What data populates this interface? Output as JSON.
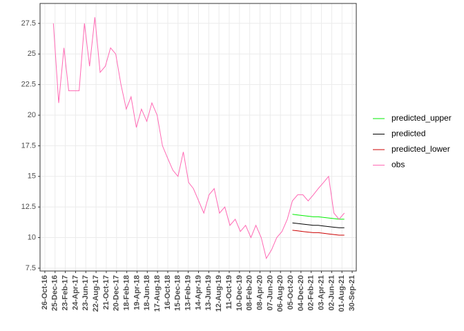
{
  "chart_data": {
    "type": "line",
    "x": [
      "2016-12-15",
      "2017-01-15",
      "2017-02-15",
      "2017-03-15",
      "2017-04-15",
      "2017-05-15",
      "2017-06-15",
      "2017-07-15",
      "2017-08-15",
      "2017-09-15",
      "2017-10-15",
      "2017-11-15",
      "2017-12-15",
      "2018-01-15",
      "2018-02-15",
      "2018-03-15",
      "2018-04-15",
      "2018-05-15",
      "2018-06-15",
      "2018-07-15",
      "2018-08-15",
      "2018-09-15",
      "2018-10-15",
      "2018-11-15",
      "2018-12-15",
      "2019-01-15",
      "2019-02-15",
      "2019-03-15",
      "2019-04-15",
      "2019-05-15",
      "2019-06-15",
      "2019-07-15",
      "2019-08-15",
      "2019-09-15",
      "2019-10-15",
      "2019-11-15",
      "2019-12-15",
      "2020-01-15",
      "2020-02-15",
      "2020-03-15",
      "2020-04-15",
      "2020-05-15",
      "2020-06-15",
      "2020-07-15",
      "2020-08-15",
      "2020-09-15",
      "2020-10-15",
      "2020-11-15",
      "2020-12-15",
      "2021-01-15",
      "2021-02-15",
      "2021-03-15",
      "2021-04-15",
      "2021-05-15",
      "2021-06-15",
      "2021-07-15",
      "2021-08-15"
    ],
    "series": [
      {
        "name": "predicted_upper",
        "color": "#00ee00",
        "values": [
          null,
          null,
          null,
          null,
          null,
          null,
          null,
          null,
          null,
          null,
          null,
          null,
          null,
          null,
          null,
          null,
          null,
          null,
          null,
          null,
          null,
          null,
          null,
          null,
          null,
          null,
          null,
          null,
          null,
          null,
          null,
          null,
          null,
          null,
          null,
          null,
          null,
          null,
          null,
          null,
          null,
          null,
          null,
          null,
          null,
          null,
          11.9,
          11.85,
          11.8,
          11.75,
          11.7,
          11.7,
          11.65,
          11.6,
          11.55,
          11.5,
          11.5
        ]
      },
      {
        "name": "predicted",
        "color": "#000000",
        "values": [
          null,
          null,
          null,
          null,
          null,
          null,
          null,
          null,
          null,
          null,
          null,
          null,
          null,
          null,
          null,
          null,
          null,
          null,
          null,
          null,
          null,
          null,
          null,
          null,
          null,
          null,
          null,
          null,
          null,
          null,
          null,
          null,
          null,
          null,
          null,
          null,
          null,
          null,
          null,
          null,
          null,
          null,
          null,
          null,
          null,
          null,
          11.2,
          11.15,
          11.1,
          11.05,
          11.0,
          11.0,
          10.95,
          10.9,
          10.85,
          10.8,
          10.8
        ]
      },
      {
        "name": "predicted_lower",
        "color": "#cc0000",
        "values": [
          null,
          null,
          null,
          null,
          null,
          null,
          null,
          null,
          null,
          null,
          null,
          null,
          null,
          null,
          null,
          null,
          null,
          null,
          null,
          null,
          null,
          null,
          null,
          null,
          null,
          null,
          null,
          null,
          null,
          null,
          null,
          null,
          null,
          null,
          null,
          null,
          null,
          null,
          null,
          null,
          null,
          null,
          null,
          null,
          null,
          null,
          10.6,
          10.55,
          10.5,
          10.45,
          10.4,
          10.4,
          10.35,
          10.3,
          10.25,
          10.2,
          10.2
        ]
      },
      {
        "name": "obs",
        "color": "#ff69b4",
        "values": [
          27.5,
          21.0,
          25.5,
          22.0,
          22.0,
          22.0,
          27.5,
          24.0,
          28.0,
          23.5,
          24.0,
          25.5,
          25.0,
          22.5,
          20.5,
          21.5,
          19.0,
          20.5,
          19.5,
          21.0,
          20.0,
          17.5,
          16.5,
          15.5,
          15.0,
          17.0,
          14.5,
          14.0,
          13.0,
          12.0,
          13.5,
          14.0,
          12.0,
          12.5,
          11.0,
          11.5,
          10.5,
          11.0,
          10.0,
          11.0,
          10.0,
          8.3,
          9.0,
          10.0,
          10.5,
          11.5,
          13.0,
          13.5,
          13.5,
          13.0,
          13.5,
          14.0,
          14.5,
          15.0,
          12.0,
          11.5,
          12.0
        ]
      }
    ],
    "xlim": [
      "2016-09-28",
      "2021-10-24"
    ],
    "xticks": [
      {
        "value": "2016-10-26",
        "label": "26-Oct-16"
      },
      {
        "value": "2016-12-25",
        "label": "25-Dec-16"
      },
      {
        "value": "2017-02-23",
        "label": "23-Feb-17"
      },
      {
        "value": "2017-04-24",
        "label": "24-Apr-17"
      },
      {
        "value": "2017-06-23",
        "label": "23-Jun-17"
      },
      {
        "value": "2017-08-22",
        "label": "22-Aug-17"
      },
      {
        "value": "2017-10-21",
        "label": "21-Oct-17"
      },
      {
        "value": "2017-12-20",
        "label": "20-Dec-17"
      },
      {
        "value": "2018-02-18",
        "label": "18-Feb-18"
      },
      {
        "value": "2018-04-19",
        "label": "19-Apr-18"
      },
      {
        "value": "2018-06-18",
        "label": "18-Jun-18"
      },
      {
        "value": "2018-08-17",
        "label": "17-Aug-18"
      },
      {
        "value": "2018-10-16",
        "label": "16-Oct-18"
      },
      {
        "value": "2018-12-15",
        "label": "15-Dec-18"
      },
      {
        "value": "2019-02-13",
        "label": "13-Feb-19"
      },
      {
        "value": "2019-04-14",
        "label": "14-Apr-19"
      },
      {
        "value": "2019-06-13",
        "label": "13-Jun-19"
      },
      {
        "value": "2019-08-12",
        "label": "12-Aug-19"
      },
      {
        "value": "2019-10-11",
        "label": "11-Oct-19"
      },
      {
        "value": "2019-12-10",
        "label": "10-Dec-19"
      },
      {
        "value": "2020-02-08",
        "label": "08-Feb-20"
      },
      {
        "value": "2020-04-08",
        "label": "08-Apr-20"
      },
      {
        "value": "2020-06-07",
        "label": "07-Jun-20"
      },
      {
        "value": "2020-08-06",
        "label": "06-Aug-20"
      },
      {
        "value": "2020-10-05",
        "label": "05-Oct-20"
      },
      {
        "value": "2020-12-04",
        "label": "04-Dec-20"
      },
      {
        "value": "2021-02-02",
        "label": "02-Feb-21"
      },
      {
        "value": "2021-04-03",
        "label": "03-Apr-21"
      },
      {
        "value": "2021-06-02",
        "label": "02-Jun-21"
      },
      {
        "value": "2021-08-01",
        "label": "01-Aug-21"
      },
      {
        "value": "2021-09-30",
        "label": "30-Sep-21"
      }
    ],
    "ylim": [
      7.27,
      29.13
    ],
    "yticks": [
      7.5,
      10.0,
      12.5,
      15.0,
      17.5,
      20.0,
      22.5,
      25.0,
      27.5
    ],
    "grid": true,
    "legend": "right"
  }
}
